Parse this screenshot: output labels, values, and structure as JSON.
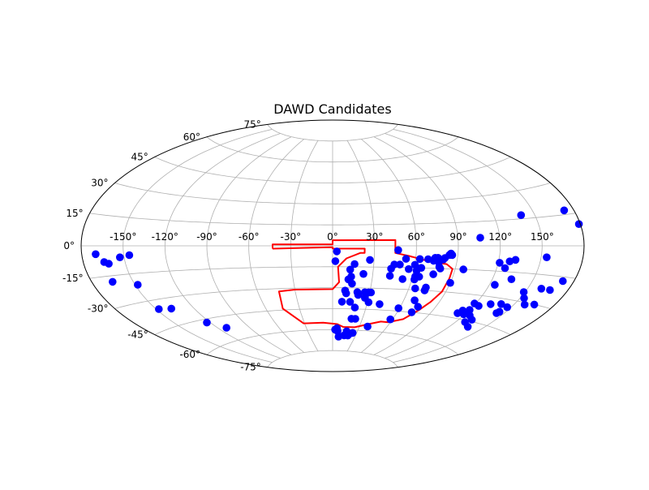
{
  "chart_data": {
    "type": "scatter",
    "projection": "aitoff",
    "title": "DAWD Candidates",
    "x_tick_labels": [
      "-150°",
      "-120°",
      "-90°",
      "-60°",
      "-30°",
      "0°",
      "30°",
      "60°",
      "90°",
      "120°",
      "150°"
    ],
    "x_ticks_deg": [
      -150,
      -120,
      -90,
      -60,
      -30,
      0,
      30,
      60,
      90,
      120,
      150
    ],
    "y_tick_labels": [
      "-75°",
      "-60°",
      "-45°",
      "-30°",
      "-15°",
      "0°",
      "15°",
      "30°",
      "45°",
      "60°",
      "75°"
    ],
    "y_ticks_deg": [
      -75,
      -60,
      -45,
      -30,
      -15,
      0,
      15,
      30,
      45,
      60,
      75
    ],
    "grid": true,
    "colors": {
      "points": "#0000ff",
      "footprint": "#ff0000",
      "grid": "#b0b0b0",
      "frame": "#000000"
    },
    "series": [
      {
        "marker": "circle",
        "color": "#0000ff",
        "points": [
          [
            173,
            17
          ],
          [
            179,
            10
          ],
          [
            -170,
            -4
          ],
          [
            -165,
            -8
          ],
          [
            -162,
            -9
          ],
          [
            -153,
            -6
          ],
          [
            -146,
            -5
          ],
          [
            -165,
            -18
          ],
          [
            -148,
            -21
          ],
          [
            -148,
            -35
          ],
          [
            -138,
            -36
          ],
          [
            -123,
            -47
          ],
          [
            -112,
            -52
          ],
          [
            3,
            -4
          ],
          [
            2,
            -11
          ],
          [
            13,
            -17
          ],
          [
            16,
            -13
          ],
          [
            23,
            -20
          ],
          [
            27,
            -10
          ],
          [
            12,
            -24
          ],
          [
            14,
            -22
          ],
          [
            15,
            -27
          ],
          [
            10,
            -32
          ],
          [
            11,
            -34
          ],
          [
            15,
            -40
          ],
          [
            8,
            -40
          ],
          [
            20,
            -33
          ],
          [
            21,
            -35
          ],
          [
            26,
            -33
          ],
          [
            29,
            -33
          ],
          [
            31,
            -33
          ],
          [
            27,
            -37
          ],
          [
            31,
            -40
          ],
          [
            20,
            -44
          ],
          [
            19,
            -52
          ],
          [
            23,
            -52
          ],
          [
            41,
            -41
          ],
          [
            3,
            -60
          ],
          [
            5,
            -59
          ],
          [
            6,
            -61
          ],
          [
            17,
            -61
          ],
          [
            21,
            -63
          ],
          [
            25,
            -62
          ],
          [
            39,
            -57
          ],
          [
            8,
            -65
          ],
          [
            15,
            -64
          ],
          [
            20,
            -64
          ],
          [
            47,
            -3
          ],
          [
            43,
            -16
          ],
          [
            45,
            -13
          ],
          [
            49,
            -13
          ],
          [
            53,
            -9
          ],
          [
            56,
            -16
          ],
          [
            60,
            -13
          ],
          [
            63,
            -9
          ],
          [
            69,
            -9
          ],
          [
            73,
            -10
          ],
          [
            76,
            -8
          ],
          [
            84,
            -6
          ],
          [
            62,
            -17
          ],
          [
            65,
            -15
          ],
          [
            74,
            -8
          ],
          [
            75,
            -19
          ],
          [
            81,
            -8
          ],
          [
            80,
            -9
          ],
          [
            86,
            -6
          ],
          [
            85,
            -5
          ],
          [
            77,
            -11
          ],
          [
            78,
            -14
          ],
          [
            79,
            -15
          ],
          [
            43,
            -21
          ],
          [
            53,
            -23
          ],
          [
            62,
            -23
          ],
          [
            62,
            -21
          ],
          [
            65,
            -21
          ],
          [
            65,
            -29
          ],
          [
            73,
            -28
          ],
          [
            73,
            -30
          ],
          [
            69,
            -37
          ],
          [
            75,
            -41
          ],
          [
            59,
            -43
          ],
          [
            73,
            -45
          ],
          [
            58,
            -51
          ],
          [
            106,
            5
          ],
          [
            96,
            -15
          ],
          [
            90,
            -24
          ],
          [
            140,
            17
          ],
          [
            121,
            -10
          ],
          [
            128,
            -9
          ],
          [
            132,
            -8
          ],
          [
            154,
            -6
          ],
          [
            126,
            -13
          ],
          [
            134,
            -19
          ],
          [
            172,
            -17
          ],
          [
            160,
            -22
          ],
          [
            167,
            -22
          ],
          [
            149,
            -25
          ],
          [
            153,
            -28
          ],
          [
            158,
            -31
          ],
          [
            165,
            -30
          ],
          [
            124,
            -23
          ],
          [
            132,
            -34
          ],
          [
            124,
            -36
          ],
          [
            119,
            -35
          ],
          [
            147,
            -34
          ],
          [
            144,
            -38
          ],
          [
            145,
            -37
          ],
          [
            119,
            -42
          ],
          [
            125,
            -42
          ],
          [
            131,
            -44
          ],
          [
            128,
            -46
          ],
          [
            136,
            -48
          ],
          [
            113,
            -42
          ],
          [
            115,
            -40
          ],
          [
            120,
            -39
          ],
          [
            140,
            -33
          ]
        ]
      }
    ],
    "footprint": {
      "color": "#ff0000",
      "vertices": [
        [
          -43,
          -2
        ],
        [
          -43,
          1
        ],
        [
          0,
          1
        ],
        [
          0,
          4
        ],
        [
          27,
          4
        ],
        [
          45,
          4
        ],
        [
          45,
          -5
        ],
        [
          55,
          -7
        ],
        [
          68,
          -10
        ],
        [
          83,
          -12
        ],
        [
          88,
          -15
        ],
        [
          88,
          -21
        ],
        [
          87,
          -30
        ],
        [
          83,
          -37
        ],
        [
          78,
          -43
        ],
        [
          70,
          -50
        ],
        [
          62,
          -52
        ],
        [
          58,
          -53
        ],
        [
          50,
          -53
        ],
        [
          40,
          -55
        ],
        [
          25,
          -58
        ],
        [
          12,
          -58
        ],
        [
          5,
          -56
        ],
        [
          -10,
          -55
        ],
        [
          -31,
          -55
        ],
        [
          -45,
          -44
        ],
        [
          -43,
          -32
        ],
        [
          -30,
          -31
        ],
        [
          0,
          -31
        ],
        [
          5,
          -26
        ],
        [
          4,
          -15
        ],
        [
          10,
          -9
        ],
        [
          20,
          -5
        ],
        [
          23,
          -5
        ],
        [
          23,
          -2
        ],
        [
          0,
          -2
        ],
        [
          0,
          -1
        ],
        [
          -43,
          -2
        ]
      ]
    }
  }
}
